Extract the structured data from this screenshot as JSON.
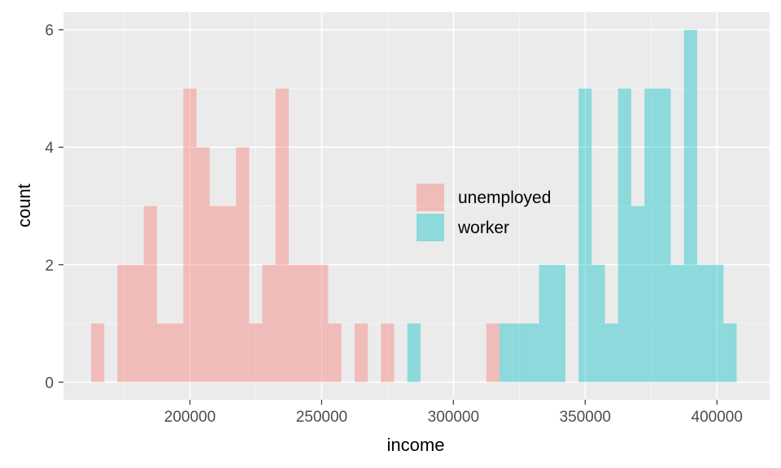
{
  "chart_data": {
    "type": "histogram",
    "xlabel": "income",
    "ylabel": "count",
    "xlim": [
      152000,
      420000
    ],
    "ylim": [
      -0.3,
      6.3
    ],
    "x_ticks": [
      200000,
      250000,
      300000,
      350000,
      400000
    ],
    "x_tick_labels": [
      "200000",
      "250000",
      "300000",
      "350000",
      "400000"
    ],
    "y_ticks": [
      0,
      2,
      4,
      6
    ],
    "y_tick_labels": [
      "0",
      "2",
      "4",
      "6"
    ],
    "bin_width": 5000,
    "grid": true,
    "legend_position": "inside-center",
    "series": [
      {
        "name": "unemployed",
        "color": "#F8766D",
        "bins": [
          {
            "x": 165000,
            "count": 1
          },
          {
            "x": 175000,
            "count": 2
          },
          {
            "x": 180000,
            "count": 2
          },
          {
            "x": 185000,
            "count": 3
          },
          {
            "x": 190000,
            "count": 1
          },
          {
            "x": 195000,
            "count": 1
          },
          {
            "x": 200000,
            "count": 5
          },
          {
            "x": 205000,
            "count": 4
          },
          {
            "x": 210000,
            "count": 3
          },
          {
            "x": 215000,
            "count": 3
          },
          {
            "x": 220000,
            "count": 4
          },
          {
            "x": 225000,
            "count": 1
          },
          {
            "x": 230000,
            "count": 2
          },
          {
            "x": 235000,
            "count": 5
          },
          {
            "x": 240000,
            "count": 2
          },
          {
            "x": 245000,
            "count": 2
          },
          {
            "x": 250000,
            "count": 2
          },
          {
            "x": 255000,
            "count": 1
          },
          {
            "x": 265000,
            "count": 1
          },
          {
            "x": 275000,
            "count": 1
          },
          {
            "x": 315000,
            "count": 1
          }
        ]
      },
      {
        "name": "worker",
        "color": "#00BFC4",
        "bins": [
          {
            "x": 285000,
            "count": 1
          },
          {
            "x": 320000,
            "count": 1
          },
          {
            "x": 325000,
            "count": 1
          },
          {
            "x": 330000,
            "count": 1
          },
          {
            "x": 335000,
            "count": 2
          },
          {
            "x": 340000,
            "count": 2
          },
          {
            "x": 350000,
            "count": 5
          },
          {
            "x": 355000,
            "count": 2
          },
          {
            "x": 360000,
            "count": 1
          },
          {
            "x": 365000,
            "count": 5
          },
          {
            "x": 370000,
            "count": 3
          },
          {
            "x": 375000,
            "count": 5
          },
          {
            "x": 380000,
            "count": 5
          },
          {
            "x": 385000,
            "count": 2
          },
          {
            "x": 390000,
            "count": 6
          },
          {
            "x": 395000,
            "count": 2
          },
          {
            "x": 400000,
            "count": 2
          },
          {
            "x": 405000,
            "count": 1
          }
        ]
      }
    ]
  }
}
